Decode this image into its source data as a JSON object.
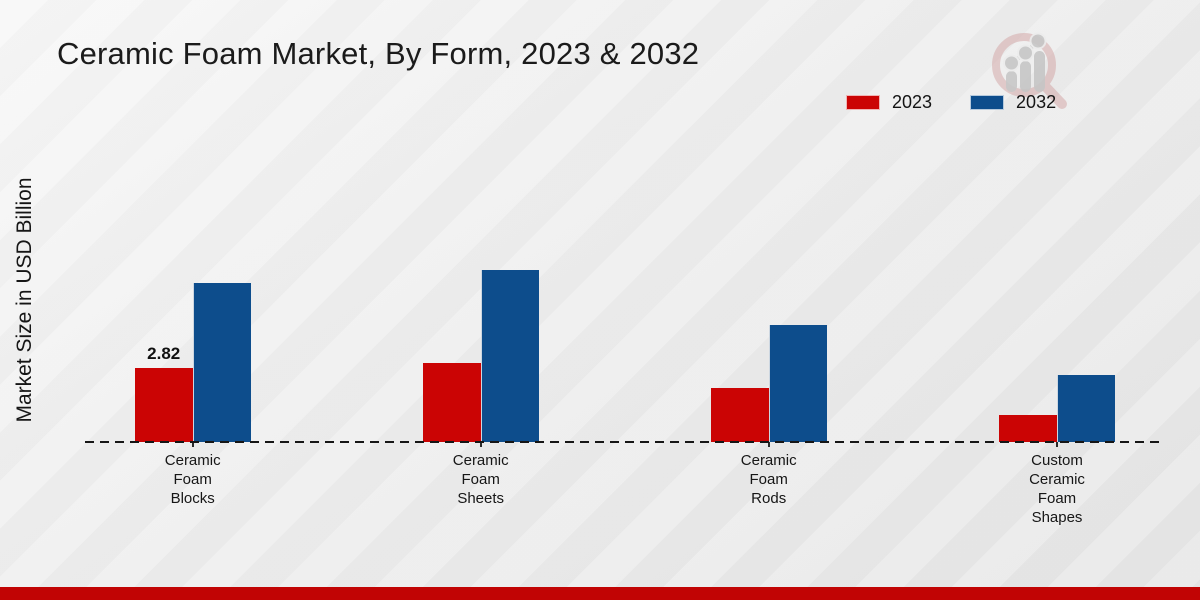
{
  "header": {
    "title": "Ceramic Foam Market, By Form, 2023 & 2032"
  },
  "watermark": {
    "icon": "magnifier-bar-chart-logo",
    "ring_color": "#d2a3a3",
    "bars_color": "#c6c6c6"
  },
  "footer": {
    "accent_bar_color": "#c10404"
  },
  "chart_data": {
    "type": "bar",
    "title": "Ceramic Foam Market, By Form, 2023 & 2032",
    "xlabel": "",
    "ylabel": "Market Size in USD Billion",
    "categories": [
      "Ceramic Foam Blocks",
      "Ceramic Foam Sheets",
      "Ceramic Foam Rods",
      "Custom Ceramic Foam Shapes"
    ],
    "categories_display": [
      "Ceramic\nFoam\nBlocks",
      "Ceramic\nFoam\nSheets",
      "Ceramic\nFoam\nRods",
      "Custom\nCeramic\nFoam\nShapes"
    ],
    "series": [
      {
        "name": "2023",
        "color": "#cb0404",
        "values": [
          2.82,
          3.01,
          2.06,
          1.01
        ],
        "data_labels": [
          "2.82",
          "",
          "",
          ""
        ]
      },
      {
        "name": "2032",
        "color": "#0d4d8c",
        "values": [
          6.02,
          6.53,
          4.44,
          2.52
        ],
        "data_labels": [
          "",
          "",
          "",
          ""
        ]
      }
    ],
    "ylim": [
      0,
      7
    ],
    "grid": false,
    "legend_position": "top-right",
    "baseline_style": "dashed"
  }
}
